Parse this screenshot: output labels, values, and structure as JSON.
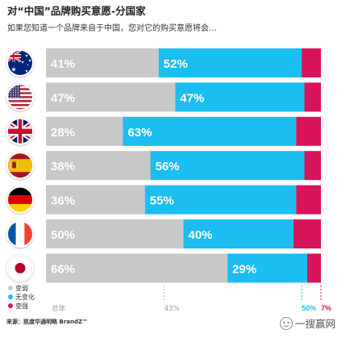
{
  "source": "来源：凯度华通明略 BrandZ™",
  "watermark": {
    "text": "一搜赢网",
    "icon": "watermark-logo-icon"
  },
  "colors": {
    "text": "#222222",
    "muted": "#999999"
  },
  "chart_data": {
    "type": "bar",
    "orientation": "horizontal",
    "stacked": true,
    "title": "对“中国”品牌购买意愿-分国家",
    "subtitle": "如果您知道一个品牌来自于中国，您对它的购买意愿将会…",
    "categories": [
      "australia-flag-icon",
      "usa-flag-icon",
      "uk-flag-icon",
      "spain-flag-icon",
      "germany-flag-icon",
      "france-flag-icon",
      "japan-flag-icon"
    ],
    "xlim": [
      0,
      100
    ],
    "grid": false,
    "legend": {
      "position": "bottom-left"
    },
    "series": [
      {
        "name": "变弱",
        "color": "#c8c8c8",
        "values": [
          41,
          47,
          28,
          38,
          36,
          50,
          66
        ],
        "labels": [
          "41%",
          "47%",
          "28%",
          "38%",
          "36%",
          "50%",
          "66%"
        ]
      },
      {
        "name": "无变化",
        "color": "#1cbdf0",
        "values": [
          52,
          47,
          63,
          56,
          55,
          40,
          29
        ],
        "labels": [
          "52%",
          "47%",
          "63%",
          "56%",
          "55%",
          "40%",
          "29%"
        ]
      },
      {
        "name": "变强",
        "color": "#d6145c",
        "values": [
          7,
          6,
          9,
          6,
          9,
          10,
          5
        ]
      }
    ],
    "overall": {
      "label": "总体",
      "values": [
        43,
        50,
        7
      ],
      "labels": [
        "43%",
        "50%",
        "7%"
      ]
    }
  }
}
